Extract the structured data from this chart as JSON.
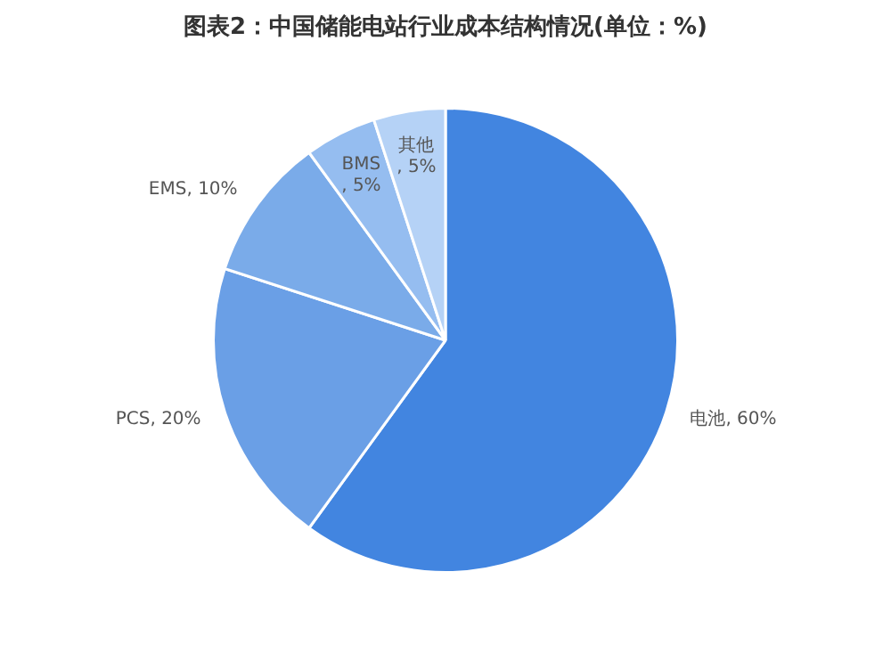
{
  "chart_data": {
    "type": "pie",
    "title": "图表2：中国储能电站行业成本结构情况(单位：%)",
    "categories": [
      "电池",
      "PCS",
      "EMS",
      "BMS",
      "其他"
    ],
    "values": [
      60,
      20,
      10,
      5,
      5
    ],
    "colors": [
      "#4285e0",
      "#6a9fe6",
      "#7aabe9",
      "#95bdf0",
      "#b5d2f6"
    ],
    "value_labels": [
      ", 60%",
      ", 20%",
      ", 10%",
      ", 5%",
      ", 5%"
    ],
    "legend": false
  }
}
